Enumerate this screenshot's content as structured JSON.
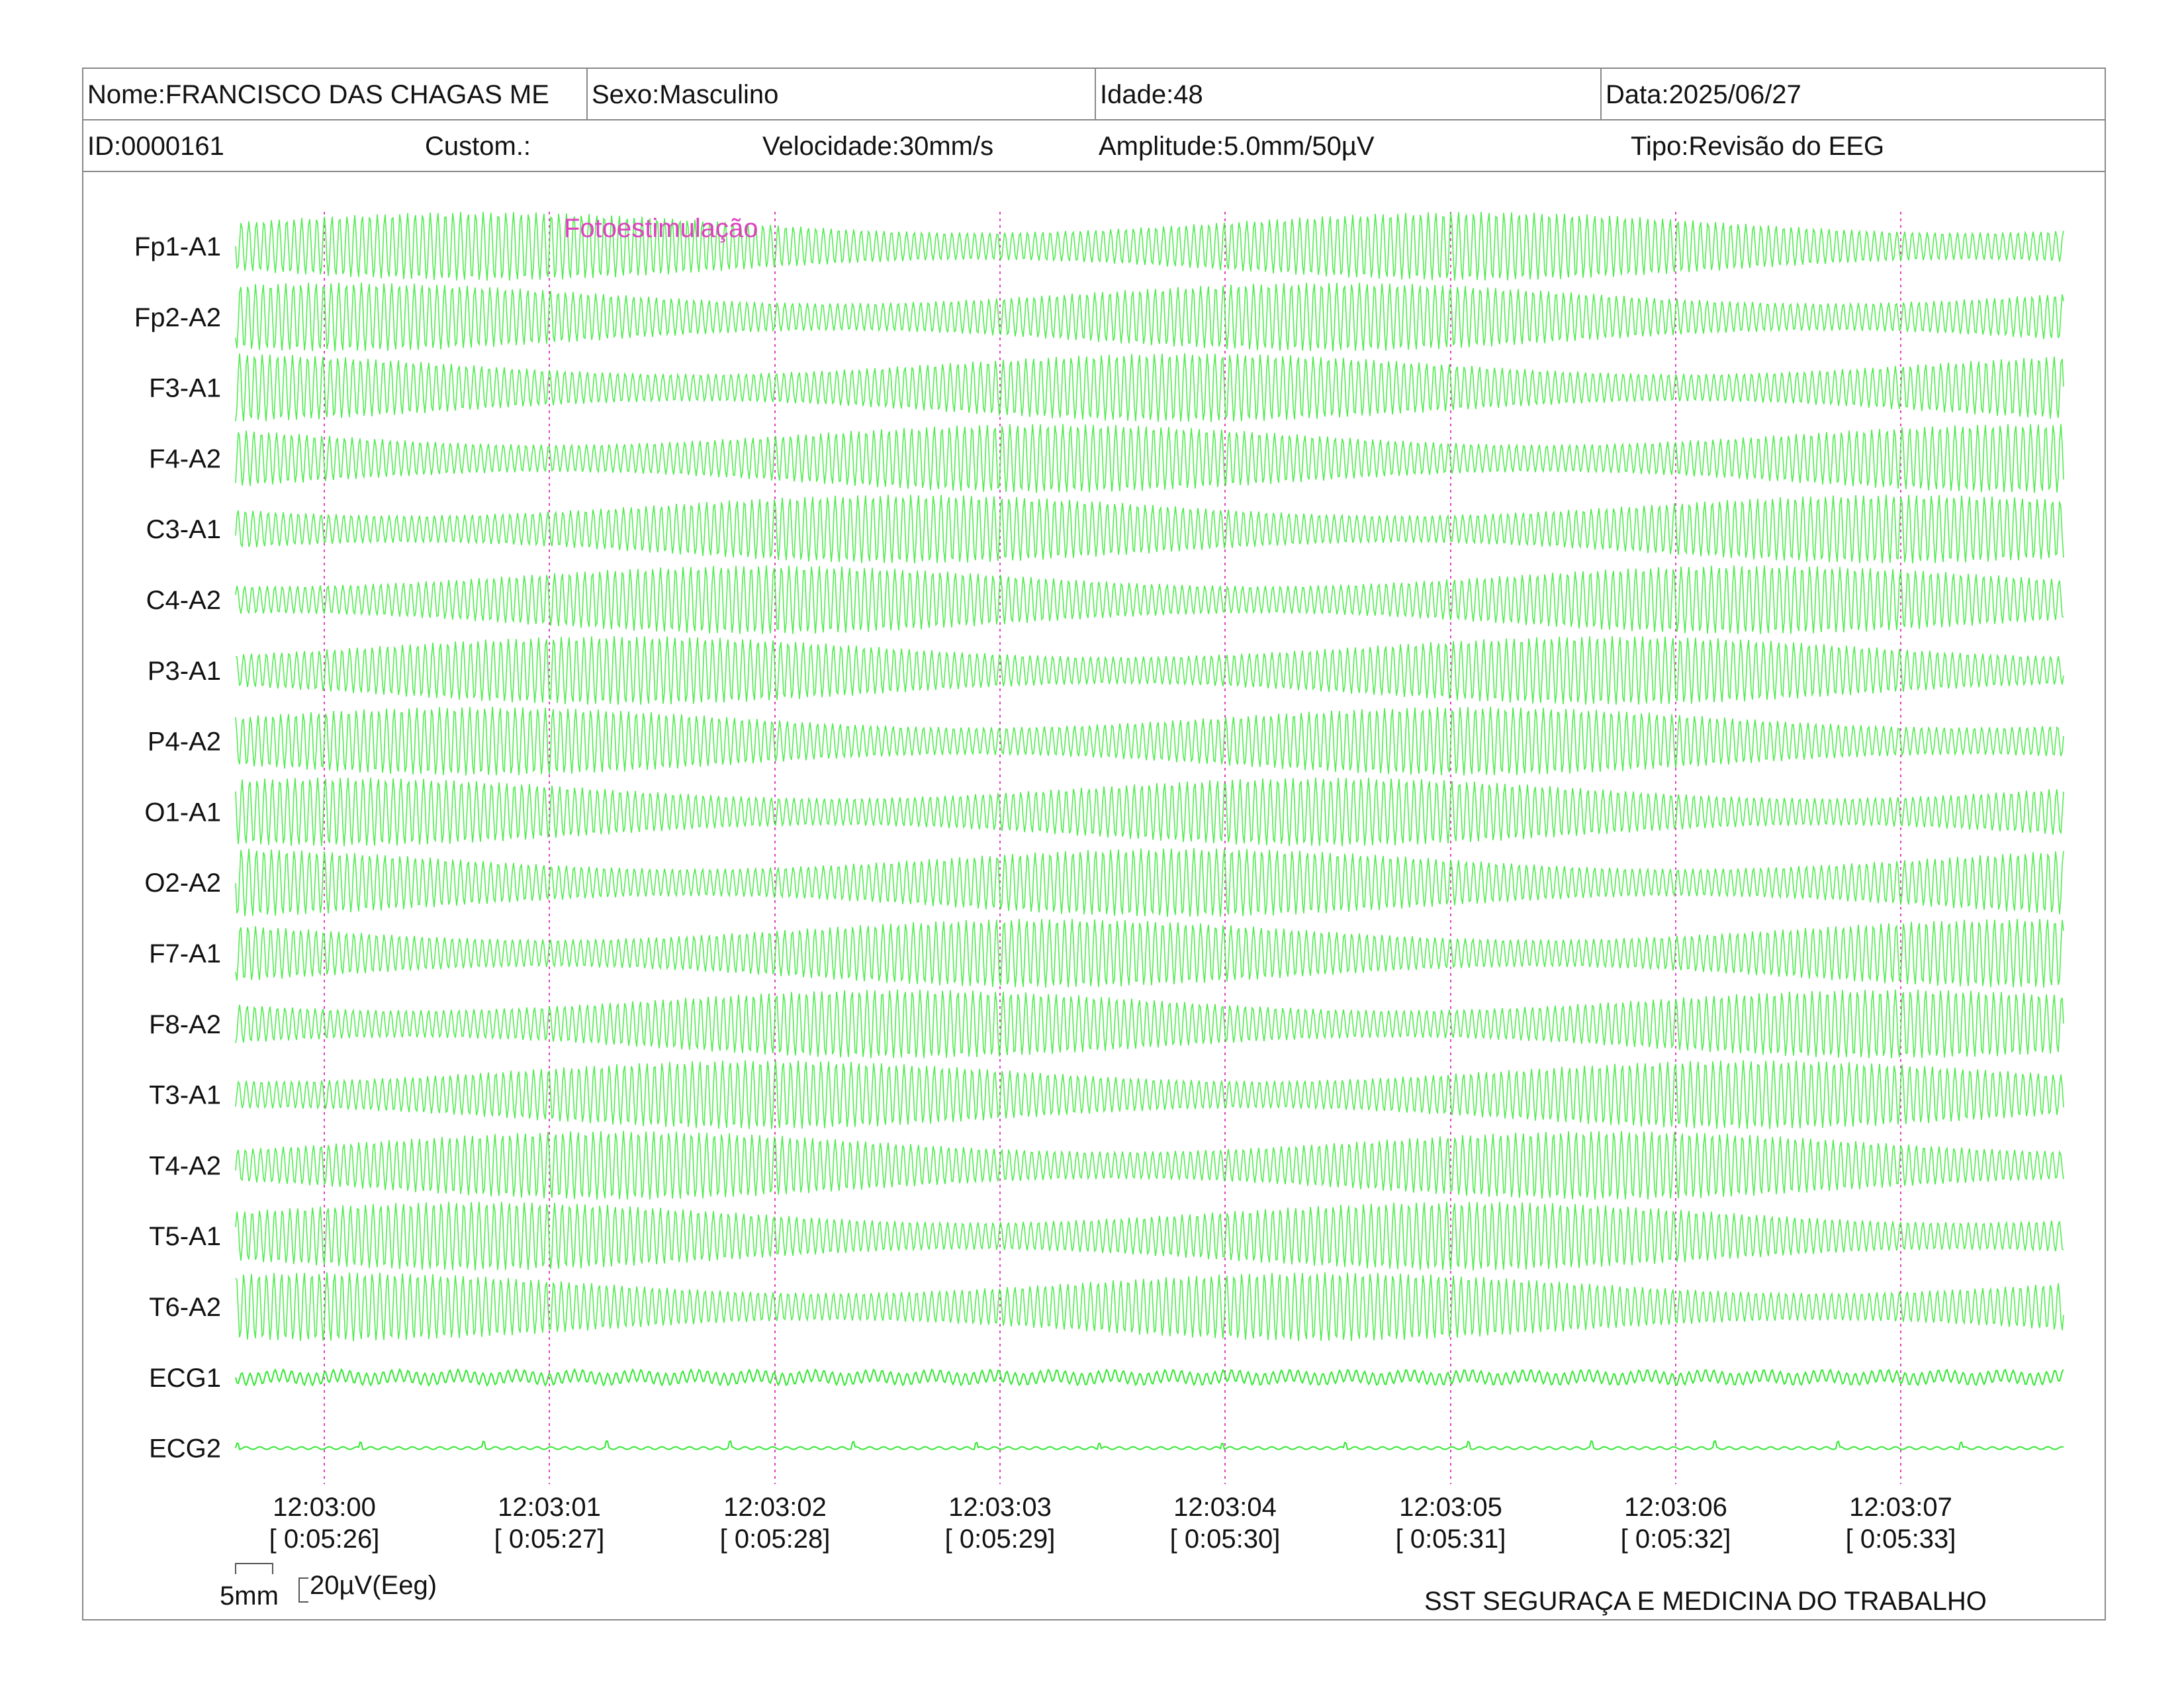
{
  "header": {
    "name": "Nome:FRANCISCO DAS CHAGAS ME",
    "sex": "Sexo:Masculino",
    "age": "Idade:48",
    "date": "Data:2025/06/27",
    "id": "ID:0000161",
    "custom": "Custom.:",
    "speed": "Velocidade:30mm/s",
    "amplitude": "Amplitude:5.0mm/50µV",
    "type": "Tipo:Revisão do EEG"
  },
  "annotation": "Fotoestimulação",
  "channels": [
    "Fp1-A1",
    "Fp2-A2",
    "F3-A1",
    "F4-A2",
    "C3-A1",
    "C4-A2",
    "P3-A1",
    "P4-A2",
    "O1-A1",
    "O2-A2",
    "F7-A1",
    "F8-A2",
    "T3-A1",
    "T4-A2",
    "T5-A1",
    "T6-A2",
    "ECG1",
    "ECG2"
  ],
  "time_marks": [
    {
      "clock": "12:03:00",
      "elapsed": "[ 0:05:26]"
    },
    {
      "clock": "12:03:01",
      "elapsed": "[ 0:05:27]"
    },
    {
      "clock": "12:03:02",
      "elapsed": "[ 0:05:28]"
    },
    {
      "clock": "12:03:03",
      "elapsed": "[ 0:05:29]"
    },
    {
      "clock": "12:03:04",
      "elapsed": "[ 0:05:30]"
    },
    {
      "clock": "12:03:05",
      "elapsed": "[ 0:05:31]"
    },
    {
      "clock": "12:03:06",
      "elapsed": "[ 0:05:32]"
    },
    {
      "clock": "12:03:07",
      "elapsed": "[ 0:05:33]"
    }
  ],
  "scale": {
    "time": "5mm",
    "amplitude": "20µV(Eeg)"
  },
  "footer": "SST SEGURAÇA E MEDICINA DO TRABALHO",
  "colors": {
    "trace": "#33e833",
    "annotation": "#e040c0",
    "marker": "#e040c0",
    "border": "#888888"
  }
}
